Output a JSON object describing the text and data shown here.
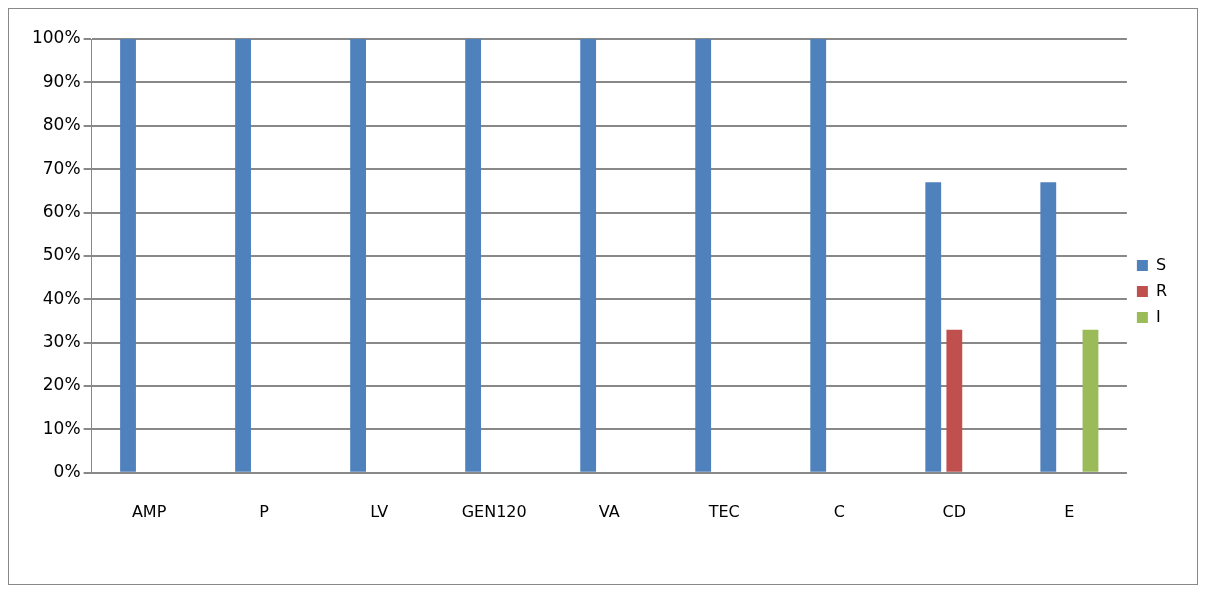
{
  "chart_data": {
    "type": "bar",
    "categories": [
      "AMP",
      "P",
      "LV",
      "GEN120",
      "VA",
      "TEC",
      "C",
      "CD",
      "E"
    ],
    "series": [
      {
        "name": "S",
        "color": "#4f81bd",
        "values": [
          100,
          100,
          100,
          100,
          100,
          100,
          100,
          67,
          67
        ]
      },
      {
        "name": "R",
        "color": "#c0504d",
        "values": [
          0,
          0,
          0,
          0,
          0,
          0,
          0,
          33,
          0
        ]
      },
      {
        "name": "I",
        "color": "#9bbb59",
        "values": [
          0,
          0,
          0,
          0,
          0,
          0,
          0,
          0,
          33
        ]
      }
    ],
    "ylim": [
      0,
      100
    ],
    "yticks": [
      {
        "value": 0,
        "label": "0%"
      },
      {
        "value": 10,
        "label": "10%"
      },
      {
        "value": 20,
        "label": "20%"
      },
      {
        "value": 30,
        "label": "30%"
      },
      {
        "value": 40,
        "label": "40%"
      },
      {
        "value": 50,
        "label": "50%"
      },
      {
        "value": 60,
        "label": "60%"
      },
      {
        "value": 70,
        "label": "70%"
      },
      {
        "value": 80,
        "label": "80%"
      },
      {
        "value": 90,
        "label": "90%"
      },
      {
        "value": 100,
        "label": "100%"
      }
    ],
    "grid": "y",
    "legend": "right"
  }
}
